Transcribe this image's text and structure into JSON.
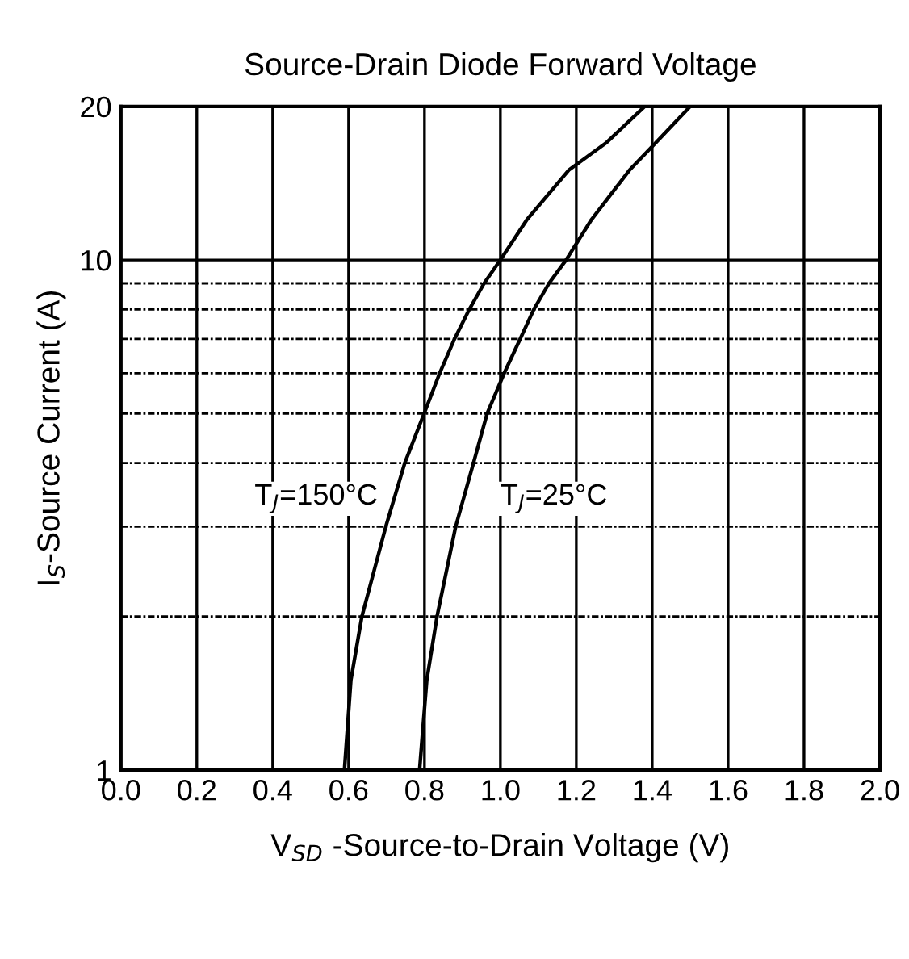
{
  "chart_data": {
    "type": "line",
    "title": "Source-Drain Diode Forward Voltage",
    "xlabel": "V$_{SD}$ -Source-to-Drain Voltage (V)",
    "ylabel": "I$_{S}$-Source Current (A)",
    "series": [
      {
        "name": "T$_{J}$=150°C",
        "color": "#000000",
        "x": [
          0.589,
          0.606,
          0.635,
          0.698,
          0.748,
          0.799,
          0.84,
          0.879,
          0.918,
          0.957,
          1.0,
          1.07,
          1.18,
          1.28,
          1.38
        ],
        "values": [
          1,
          1.5,
          2,
          3,
          4,
          5,
          6,
          7,
          8,
          9,
          10,
          12,
          15,
          17,
          20
        ]
      },
      {
        "name": "T$_{J}$=25°C",
        "color": "#000000",
        "x": [
          0.787,
          0.806,
          0.833,
          0.882,
          0.929,
          0.965,
          1.01,
          1.052,
          1.088,
          1.128,
          1.173,
          1.24,
          1.34,
          1.41,
          1.5
        ],
        "values": [
          1,
          1.5,
          2,
          3,
          4,
          5,
          6,
          7,
          8,
          9,
          10,
          12,
          15,
          17,
          20
        ]
      }
    ],
    "log": "y",
    "xlim": [
      0,
      2
    ],
    "ylim": [
      1,
      20
    ],
    "xticks": [
      {
        "value": 0,
        "label": "0.0"
      },
      {
        "value": 0.2,
        "label": "0.2"
      },
      {
        "value": 0.4,
        "label": "0.4"
      },
      {
        "value": 0.6,
        "label": "0.6"
      },
      {
        "value": 0.8,
        "label": "0.8"
      },
      {
        "value": 1.0,
        "label": "1.0"
      },
      {
        "value": 1.2,
        "label": "1.2"
      },
      {
        "value": 1.4,
        "label": "1.4"
      },
      {
        "value": 1.6,
        "label": "1.6"
      },
      {
        "value": 1.8,
        "label": "1.8"
      },
      {
        "value": 2.0,
        "label": "2.0"
      }
    ],
    "yticks": [
      1,
      {
        "value": 2,
        "label": null
      },
      {
        "value": 3,
        "label": null
      },
      {
        "value": 4,
        "label": null
      },
      {
        "value": 5,
        "label": null
      },
      {
        "value": 6,
        "label": null
      },
      {
        "value": 7,
        "label": null
      },
      {
        "value": 8,
        "label": null
      },
      {
        "value": 9,
        "label": null
      },
      10,
      20
    ],
    "grid": true,
    "marker": "none",
    "line_style": "solid",
    "legend": false
  }
}
